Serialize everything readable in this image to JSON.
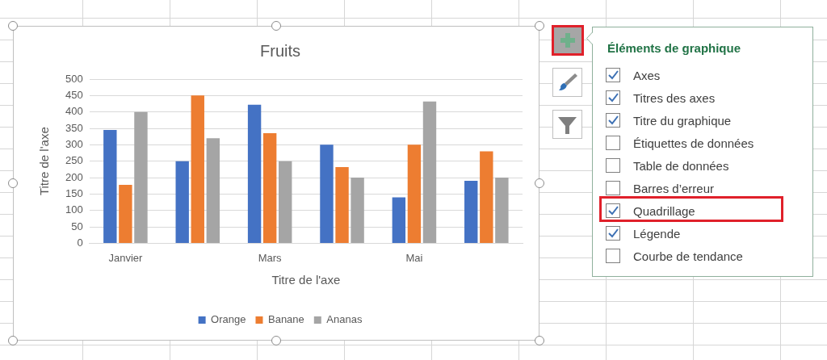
{
  "chart_data": {
    "type": "bar",
    "title": "Fruits",
    "xlabel": "Titre de l'axe",
    "ylabel": "Titre de l'axe",
    "categories": [
      "Janvier",
      null,
      "Mars",
      null,
      "Mai",
      null
    ],
    "series": [
      {
        "name": "Orange",
        "color": "#4472c4",
        "values": [
          345,
          250,
          422,
          300,
          140,
          190
        ]
      },
      {
        "name": "Banane",
        "color": "#ed7d31",
        "values": [
          178,
          450,
          335,
          232,
          300,
          280
        ]
      },
      {
        "name": "Ananas",
        "color": "#a5a5a5",
        "values": [
          400,
          320,
          250,
          200,
          432,
          200
        ]
      }
    ],
    "ylim": [
      0,
      500
    ],
    "yticks": [
      0,
      50,
      100,
      150,
      200,
      250,
      300,
      350,
      400,
      450,
      500
    ],
    "grid": "y",
    "legend": "bottom",
    "annotations": [
      "Éléments de graphique",
      "Axes",
      "Titres des axes",
      "Titre du graphique",
      "Étiquettes de données",
      "Table de données",
      "Barres d’erreur",
      "Quadrillage",
      "Légende",
      "Courbe de tendance"
    ]
  }
}
